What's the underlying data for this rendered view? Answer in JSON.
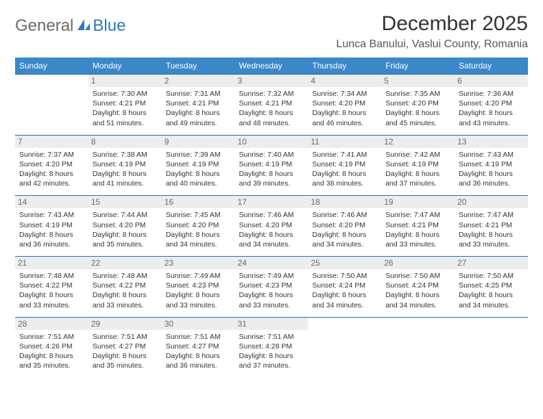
{
  "brand": {
    "part1": "General",
    "part2": "Blue"
  },
  "title": "December 2025",
  "location": "Lunca Banului, Vaslui County, Romania",
  "colors": {
    "header_bg": "#3b87c8",
    "rule": "#2f6ea8",
    "daynum_bg": "#eceded"
  },
  "fonts": {
    "title_size": 30,
    "location_size": 16,
    "th_size": 12,
    "cell_size": 10.5
  },
  "weekdays": [
    "Sunday",
    "Monday",
    "Tuesday",
    "Wednesday",
    "Thursday",
    "Friday",
    "Saturday"
  ],
  "first_weekday_index": 1,
  "days": [
    {
      "n": 1,
      "sunrise": "7:30 AM",
      "sunset": "4:21 PM",
      "daylight": "8 hours and 51 minutes."
    },
    {
      "n": 2,
      "sunrise": "7:31 AM",
      "sunset": "4:21 PM",
      "daylight": "8 hours and 49 minutes."
    },
    {
      "n": 3,
      "sunrise": "7:32 AM",
      "sunset": "4:21 PM",
      "daylight": "8 hours and 48 minutes."
    },
    {
      "n": 4,
      "sunrise": "7:34 AM",
      "sunset": "4:20 PM",
      "daylight": "8 hours and 46 minutes."
    },
    {
      "n": 5,
      "sunrise": "7:35 AM",
      "sunset": "4:20 PM",
      "daylight": "8 hours and 45 minutes."
    },
    {
      "n": 6,
      "sunrise": "7:36 AM",
      "sunset": "4:20 PM",
      "daylight": "8 hours and 43 minutes."
    },
    {
      "n": 7,
      "sunrise": "7:37 AM",
      "sunset": "4:20 PM",
      "daylight": "8 hours and 42 minutes."
    },
    {
      "n": 8,
      "sunrise": "7:38 AM",
      "sunset": "4:19 PM",
      "daylight": "8 hours and 41 minutes."
    },
    {
      "n": 9,
      "sunrise": "7:39 AM",
      "sunset": "4:19 PM",
      "daylight": "8 hours and 40 minutes."
    },
    {
      "n": 10,
      "sunrise": "7:40 AM",
      "sunset": "4:19 PM",
      "daylight": "8 hours and 39 minutes."
    },
    {
      "n": 11,
      "sunrise": "7:41 AM",
      "sunset": "4:19 PM",
      "daylight": "8 hours and 38 minutes."
    },
    {
      "n": 12,
      "sunrise": "7:42 AM",
      "sunset": "4:19 PM",
      "daylight": "8 hours and 37 minutes."
    },
    {
      "n": 13,
      "sunrise": "7:43 AM",
      "sunset": "4:19 PM",
      "daylight": "8 hours and 36 minutes."
    },
    {
      "n": 14,
      "sunrise": "7:43 AM",
      "sunset": "4:19 PM",
      "daylight": "8 hours and 36 minutes."
    },
    {
      "n": 15,
      "sunrise": "7:44 AM",
      "sunset": "4:20 PM",
      "daylight": "8 hours and 35 minutes."
    },
    {
      "n": 16,
      "sunrise": "7:45 AM",
      "sunset": "4:20 PM",
      "daylight": "8 hours and 34 minutes."
    },
    {
      "n": 17,
      "sunrise": "7:46 AM",
      "sunset": "4:20 PM",
      "daylight": "8 hours and 34 minutes."
    },
    {
      "n": 18,
      "sunrise": "7:46 AM",
      "sunset": "4:20 PM",
      "daylight": "8 hours and 34 minutes."
    },
    {
      "n": 19,
      "sunrise": "7:47 AM",
      "sunset": "4:21 PM",
      "daylight": "8 hours and 33 minutes."
    },
    {
      "n": 20,
      "sunrise": "7:47 AM",
      "sunset": "4:21 PM",
      "daylight": "8 hours and 33 minutes."
    },
    {
      "n": 21,
      "sunrise": "7:48 AM",
      "sunset": "4:22 PM",
      "daylight": "8 hours and 33 minutes."
    },
    {
      "n": 22,
      "sunrise": "7:48 AM",
      "sunset": "4:22 PM",
      "daylight": "8 hours and 33 minutes."
    },
    {
      "n": 23,
      "sunrise": "7:49 AM",
      "sunset": "4:23 PM",
      "daylight": "8 hours and 33 minutes."
    },
    {
      "n": 24,
      "sunrise": "7:49 AM",
      "sunset": "4:23 PM",
      "daylight": "8 hours and 33 minutes."
    },
    {
      "n": 25,
      "sunrise": "7:50 AM",
      "sunset": "4:24 PM",
      "daylight": "8 hours and 34 minutes."
    },
    {
      "n": 26,
      "sunrise": "7:50 AM",
      "sunset": "4:24 PM",
      "daylight": "8 hours and 34 minutes."
    },
    {
      "n": 27,
      "sunrise": "7:50 AM",
      "sunset": "4:25 PM",
      "daylight": "8 hours and 34 minutes."
    },
    {
      "n": 28,
      "sunrise": "7:51 AM",
      "sunset": "4:26 PM",
      "daylight": "8 hours and 35 minutes."
    },
    {
      "n": 29,
      "sunrise": "7:51 AM",
      "sunset": "4:27 PM",
      "daylight": "8 hours and 35 minutes."
    },
    {
      "n": 30,
      "sunrise": "7:51 AM",
      "sunset": "4:27 PM",
      "daylight": "8 hours and 36 minutes."
    },
    {
      "n": 31,
      "sunrise": "7:51 AM",
      "sunset": "4:28 PM",
      "daylight": "8 hours and 37 minutes."
    }
  ],
  "labels": {
    "sunrise": "Sunrise:",
    "sunset": "Sunset:",
    "daylight": "Daylight:"
  }
}
